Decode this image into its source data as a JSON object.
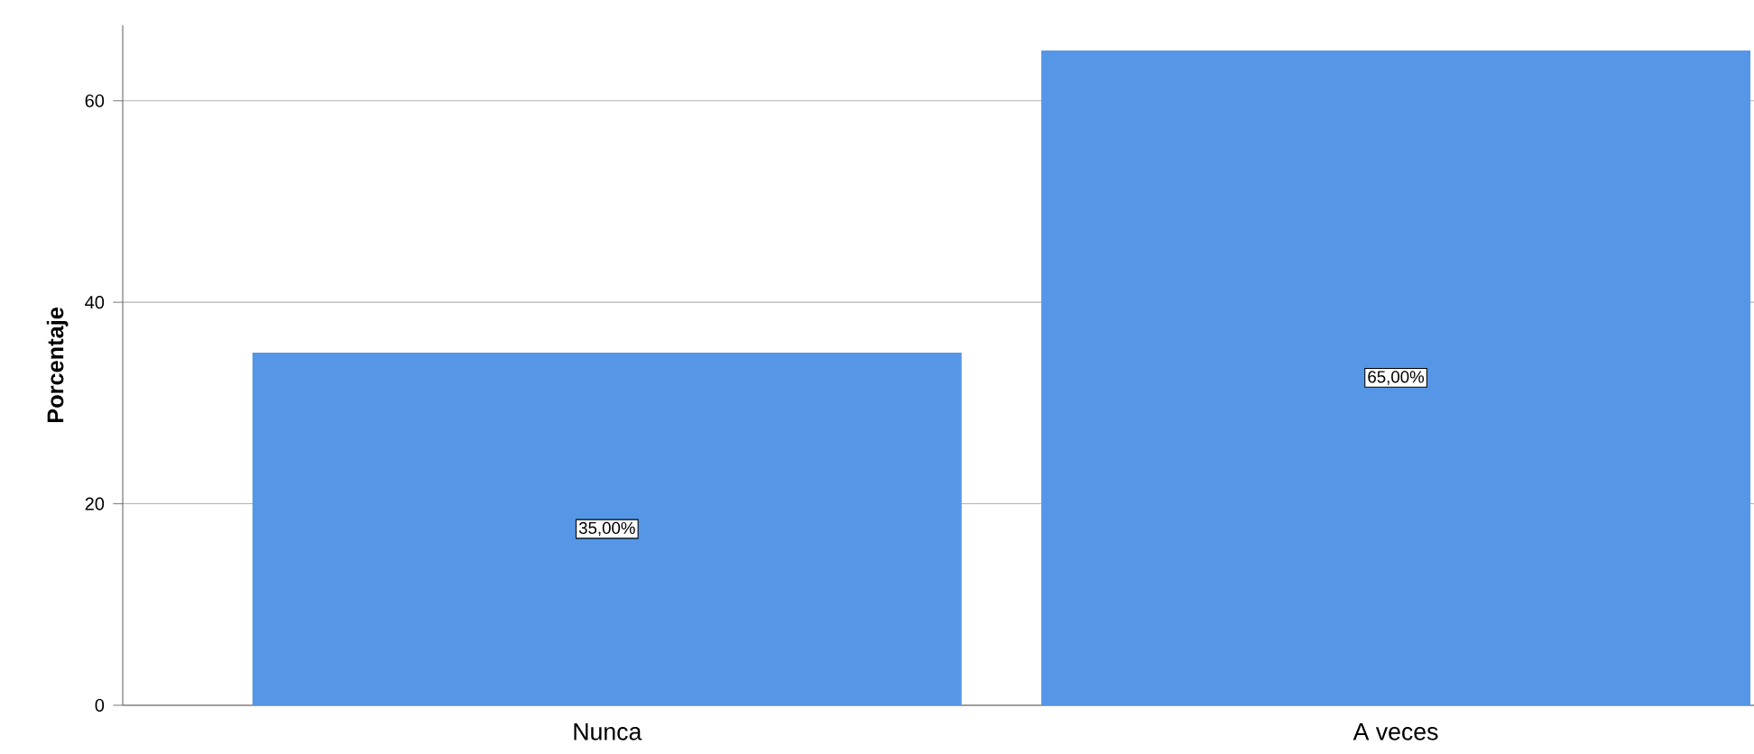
{
  "chart_data": {
    "type": "bar",
    "ylabel": "Porcentaje",
    "categories": [
      "Nunca",
      "A veces"
    ],
    "values": [
      35,
      65
    ],
    "value_labels": [
      "35,00%",
      "65,00%"
    ],
    "color": "#5596e6",
    "ylim": [
      0,
      67.5
    ],
    "yticks": [
      0,
      20,
      40,
      60
    ],
    "grid": "y"
  }
}
